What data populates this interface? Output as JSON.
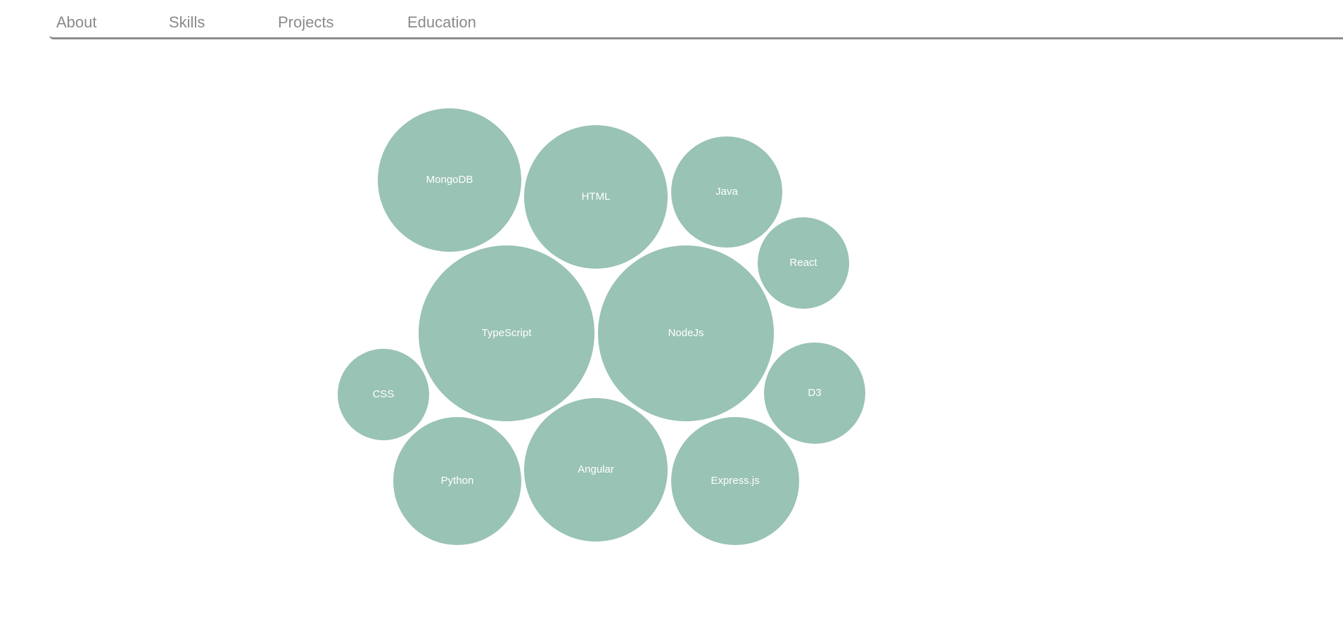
{
  "nav": {
    "items": [
      {
        "label": "About"
      },
      {
        "label": "Skills"
      },
      {
        "label": "Projects"
      },
      {
        "label": "Education"
      }
    ]
  },
  "colors": {
    "bubble": "#99c3b4",
    "nav_text": "#8a8a8a",
    "nav_border": "#8c8c8c"
  },
  "chart_data": {
    "type": "bubble",
    "title": "",
    "bubbles": [
      {
        "label": "MongoDB",
        "value": 102
      },
      {
        "label": "HTML",
        "value": 102
      },
      {
        "label": "Java",
        "value": 79
      },
      {
        "label": "React",
        "value": 65
      },
      {
        "label": "TypeScript",
        "value": 125
      },
      {
        "label": "NodeJs",
        "value": 125
      },
      {
        "label": "CSS",
        "value": 65
      },
      {
        "label": "D3",
        "value": 72
      },
      {
        "label": "Python",
        "value": 91
      },
      {
        "label": "Angular",
        "value": 102
      },
      {
        "label": "Express.js",
        "value": 91
      }
    ]
  }
}
